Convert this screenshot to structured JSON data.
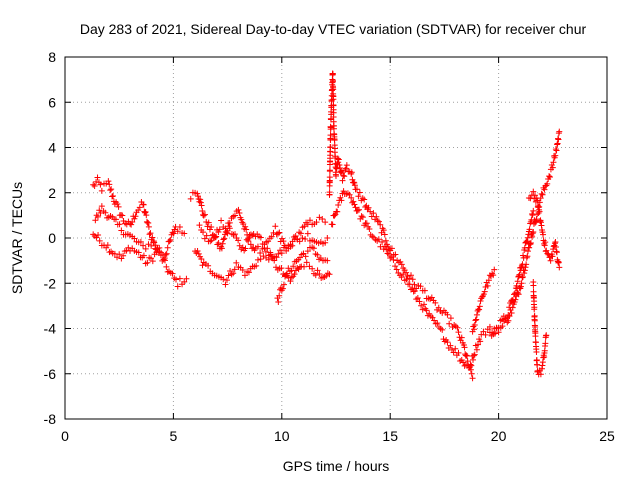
{
  "chart_data": {
    "type": "scatter",
    "title": "Day 283 of 2021, Sidereal Day-to-day VTEC variation (SDTVAR) for receiver chur",
    "xlabel": "GPS time / hours",
    "ylabel": "SDTVAR / TECUs",
    "xlim": [
      0,
      25
    ],
    "ylim": [
      -8,
      8
    ],
    "x_ticks": [
      0,
      5,
      10,
      15,
      20,
      25
    ],
    "y_ticks": [
      -8,
      -6,
      -4,
      -2,
      0,
      2,
      4,
      6,
      8
    ],
    "x_tick_labels": [
      "0",
      "5",
      "10",
      "15",
      "20",
      "25"
    ],
    "y_tick_labels": [
      "-8",
      "-6",
      "-4",
      "-2",
      "0",
      "2",
      "4",
      "6",
      "8"
    ],
    "grid": true,
    "marker": "+",
    "colors": {
      "series": "#ff0000",
      "grid": "#a0a0a0",
      "axes": "#000000"
    },
    "series": [
      {
        "name": "SDTVAR",
        "description_points": "approximate trend traces read from the plot",
        "traces": [
          {
            "x": [
              1.3,
              1.5,
              1.7,
              2.0,
              2.3,
              2.7,
              3.0,
              3.3,
              3.6,
              3.9,
              4.2
            ],
            "y": [
              2.3,
              2.5,
              2.2,
              2.4,
              1.6,
              0.8,
              0.5,
              1.2,
              1.5,
              0.3,
              -0.5
            ]
          },
          {
            "x": [
              1.3,
              1.6,
              1.9,
              2.2,
              2.6,
              3.0,
              3.4,
              3.8,
              4.3,
              4.8,
              5.2,
              5.6
            ],
            "y": [
              0.2,
              -0.1,
              -0.3,
              -0.6,
              -0.9,
              -0.4,
              -0.7,
              -1.1,
              -0.6,
              -1.5,
              -2.0,
              -1.8
            ]
          },
          {
            "x": [
              1.4,
              1.7,
              2.1,
              2.6,
              3.1,
              3.6,
              4.1,
              4.6,
              5.1,
              5.5
            ],
            "y": [
              0.8,
              1.3,
              0.9,
              0.4,
              0.0,
              -0.4,
              -0.2,
              -0.8,
              0.5,
              0.2
            ]
          },
          {
            "x": [
              5.8,
              6.1,
              6.4,
              6.8,
              7.2,
              7.6,
              8.0,
              8.4,
              8.8,
              9.2,
              9.6,
              10.0,
              10.4,
              10.8,
              11.2,
              11.6,
              12.0
            ],
            "y": [
              1.9,
              2.1,
              1.0,
              0.2,
              -0.5,
              0.8,
              1.2,
              0.1,
              -0.6,
              -0.4,
              -1.0,
              -0.6,
              -0.3,
              0.2,
              0.6,
              0.8,
              0.7
            ]
          },
          {
            "x": [
              6.0,
              6.4,
              6.9,
              7.4,
              7.9,
              8.4,
              8.9,
              9.4,
              9.9,
              10.4,
              10.9,
              11.4,
              11.9,
              12.2
            ],
            "y": [
              -0.5,
              -1.2,
              -1.5,
              -1.9,
              -1.2,
              -1.6,
              -1.0,
              -0.8,
              -1.4,
              -1.9,
              -1.1,
              -1.3,
              -1.9,
              -1.6
            ]
          },
          {
            "x": [
              6.2,
              6.7,
              7.2,
              7.7,
              8.2,
              8.7,
              9.2,
              9.7,
              10.2,
              10.7,
              11.2,
              11.7,
              12.1
            ],
            "y": [
              0.4,
              -0.2,
              0.6,
              0.2,
              -0.5,
              0.3,
              -0.2,
              0.4,
              -0.4,
              -0.1,
              0.1,
              -0.2,
              0.0
            ]
          },
          {
            "x": [
              9.8,
              10.0,
              10.3,
              10.6,
              11.0,
              11.4,
              11.8,
              12.1
            ],
            "y": [
              -2.8,
              -2.2,
              -1.5,
              -1.1,
              -0.7,
              -0.5,
              -0.9,
              -1.0
            ]
          },
          {
            "x": [
              12.2,
              12.25,
              12.3,
              12.35,
              12.4,
              12.5,
              12.6,
              12.8,
              13.0,
              13.2,
              13.4,
              13.6,
              13.8,
              14.0,
              14.3,
              14.6,
              15.0,
              15.4,
              15.8,
              16.2,
              16.6,
              17.0,
              17.4,
              17.8,
              18.1,
              18.4,
              18.6,
              18.8
            ],
            "y": [
              1.8,
              4.8,
              6.2,
              7.3,
              5.0,
              2.8,
              3.5,
              2.6,
              3.2,
              2.9,
              2.1,
              1.9,
              1.6,
              1.2,
              0.9,
              0.4,
              -0.5,
              -1.0,
              -1.6,
              -2.1,
              -2.4,
              -2.9,
              -3.3,
              -3.7,
              -4.1,
              -4.8,
              -5.6,
              -6.2
            ]
          },
          {
            "x": [
              12.3,
              12.6,
              12.9,
              13.2,
              13.5,
              13.8,
              14.1,
              14.4,
              14.7,
              15.0,
              15.3,
              15.6,
              15.9,
              16.2,
              16.5,
              16.8,
              17.1,
              17.4,
              17.7,
              18.0,
              18.3,
              18.5
            ],
            "y": [
              0.6,
              1.4,
              2.1,
              1.8,
              1.2,
              0.7,
              0.2,
              -0.1,
              -0.4,
              -0.9,
              -1.3,
              -1.7,
              -2.1,
              -2.6,
              -3.0,
              -3.5,
              -3.8,
              -4.2,
              -4.7,
              -5.0,
              -5.4,
              -5.6
            ]
          },
          {
            "x": [
              18.8,
              19.0,
              19.2,
              19.4,
              19.6,
              19.8
            ],
            "y": [
              -4.1,
              -3.4,
              -2.7,
              -2.2,
              -1.8,
              -1.4
            ]
          },
          {
            "x": [
              18.7,
              18.9,
              19.2,
              19.5,
              19.8,
              20.1,
              20.4,
              20.7,
              21.0,
              21.3,
              21.6,
              21.9,
              22.2,
              22.5,
              22.7,
              22.8
            ],
            "y": [
              -5.6,
              -5.0,
              -4.3,
              -4.1,
              -4.0,
              -4.0,
              -3.6,
              -3.0,
              -2.1,
              -0.9,
              0.4,
              1.6,
              2.4,
              3.2,
              4.1,
              4.7
            ]
          },
          {
            "x": [
              19.6,
              20.0,
              20.4,
              20.8,
              21.1,
              21.4,
              21.6
            ],
            "y": [
              -4.3,
              -3.9,
              -3.4,
              -2.3,
              -1.0,
              0.4,
              1.2
            ]
          },
          {
            "x": [
              21.6,
              21.7,
              21.8,
              21.9,
              22.0,
              22.1,
              22.2
            ],
            "y": [
              -2.0,
              -4.5,
              -5.9,
              -6.0,
              -5.8,
              -5.2,
              -4.3
            ]
          },
          {
            "x": [
              21.4,
              21.6,
              21.8,
              22.0,
              22.2,
              22.4,
              22.6,
              22.8
            ],
            "y": [
              1.8,
              2.0,
              1.5,
              0.4,
              -0.6,
              -1.0,
              -0.2,
              -1.3
            ]
          }
        ]
      }
    ]
  }
}
